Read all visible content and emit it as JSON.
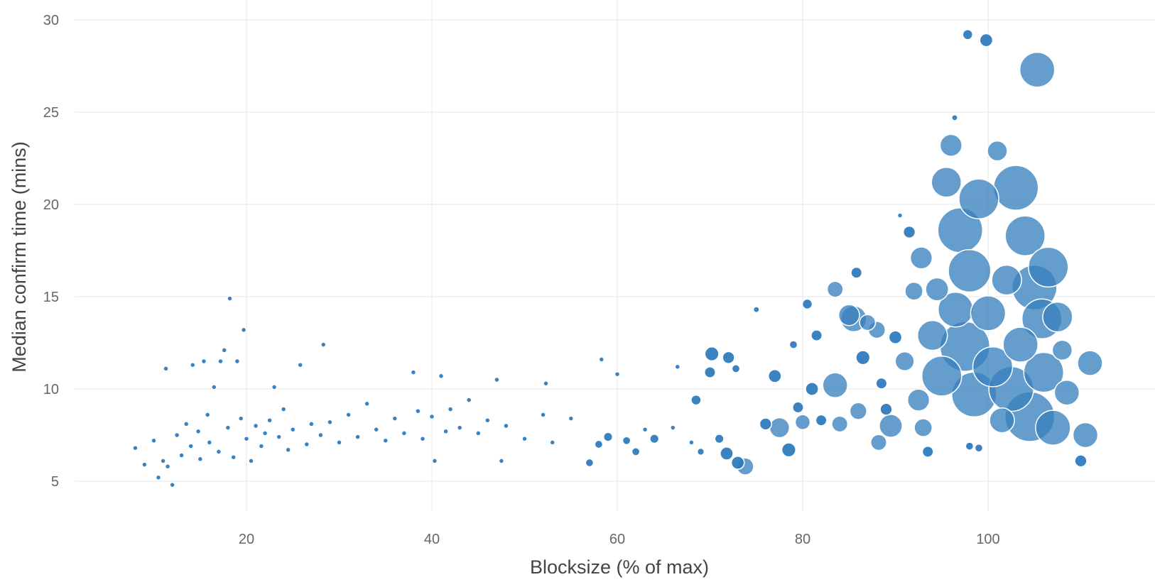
{
  "chart_data": {
    "type": "scatter",
    "subtype": "bubble",
    "xlabel": "Blocksize (% of max)",
    "ylabel": "Median confirm time (mins)",
    "xlim": [
      2,
      118
    ],
    "ylim": [
      3.5,
      30.5
    ],
    "xticks": [
      "20",
      "40",
      "60",
      "80",
      "100"
    ],
    "yticks": [
      "5",
      "10",
      "15",
      "20",
      "25",
      "30"
    ],
    "grid": true,
    "legend": "none",
    "colors": {
      "marker": "#2f7bbd",
      "marker_large": "#3a82bf",
      "grid": "#e6e6e6",
      "axis_text": "#666666"
    },
    "points": [
      {
        "x": 8,
        "y": 6.8,
        "s": 1
      },
      {
        "x": 9,
        "y": 5.9,
        "s": 1
      },
      {
        "x": 10,
        "y": 7.2,
        "s": 1
      },
      {
        "x": 10.5,
        "y": 5.2,
        "s": 1
      },
      {
        "x": 11,
        "y": 6.1,
        "s": 1
      },
      {
        "x": 11.3,
        "y": 11.1,
        "s": 1
      },
      {
        "x": 11.5,
        "y": 5.8,
        "s": 1
      },
      {
        "x": 12,
        "y": 4.8,
        "s": 1
      },
      {
        "x": 12.5,
        "y": 7.5,
        "s": 1
      },
      {
        "x": 13,
        "y": 6.4,
        "s": 1
      },
      {
        "x": 13.5,
        "y": 8.1,
        "s": 1
      },
      {
        "x": 14,
        "y": 6.9,
        "s": 1
      },
      {
        "x": 14.2,
        "y": 11.3,
        "s": 1
      },
      {
        "x": 14.8,
        "y": 7.7,
        "s": 1
      },
      {
        "x": 15,
        "y": 6.2,
        "s": 1
      },
      {
        "x": 15.4,
        "y": 11.5,
        "s": 1
      },
      {
        "x": 15.8,
        "y": 8.6,
        "s": 1
      },
      {
        "x": 16,
        "y": 7.1,
        "s": 1
      },
      {
        "x": 16.5,
        "y": 10.1,
        "s": 1
      },
      {
        "x": 17,
        "y": 6.6,
        "s": 1
      },
      {
        "x": 17.2,
        "y": 11.5,
        "s": 1
      },
      {
        "x": 17.6,
        "y": 12.1,
        "s": 1
      },
      {
        "x": 18,
        "y": 7.9,
        "s": 1
      },
      {
        "x": 18.2,
        "y": 14.9,
        "s": 1
      },
      {
        "x": 18.6,
        "y": 6.3,
        "s": 1
      },
      {
        "x": 19,
        "y": 11.5,
        "s": 1
      },
      {
        "x": 19.4,
        "y": 8.4,
        "s": 1
      },
      {
        "x": 19.7,
        "y": 13.2,
        "s": 1
      },
      {
        "x": 20,
        "y": 7.3,
        "s": 1
      },
      {
        "x": 20.5,
        "y": 6.1,
        "s": 1
      },
      {
        "x": 21,
        "y": 8.0,
        "s": 1
      },
      {
        "x": 21.6,
        "y": 6.9,
        "s": 1
      },
      {
        "x": 22,
        "y": 7.6,
        "s": 1
      },
      {
        "x": 22.5,
        "y": 8.3,
        "s": 1
      },
      {
        "x": 23,
        "y": 10.1,
        "s": 1
      },
      {
        "x": 23.5,
        "y": 7.4,
        "s": 1
      },
      {
        "x": 24,
        "y": 8.9,
        "s": 1
      },
      {
        "x": 24.5,
        "y": 6.7,
        "s": 1
      },
      {
        "x": 25,
        "y": 7.8,
        "s": 1
      },
      {
        "x": 25.8,
        "y": 11.3,
        "s": 1
      },
      {
        "x": 26.5,
        "y": 7.0,
        "s": 1
      },
      {
        "x": 27,
        "y": 8.1,
        "s": 1
      },
      {
        "x": 28,
        "y": 7.5,
        "s": 1
      },
      {
        "x": 28.3,
        "y": 12.4,
        "s": 1
      },
      {
        "x": 29,
        "y": 8.2,
        "s": 1
      },
      {
        "x": 30,
        "y": 7.1,
        "s": 1
      },
      {
        "x": 31,
        "y": 8.6,
        "s": 1
      },
      {
        "x": 32,
        "y": 7.4,
        "s": 1
      },
      {
        "x": 33,
        "y": 9.2,
        "s": 1
      },
      {
        "x": 34,
        "y": 7.8,
        "s": 1
      },
      {
        "x": 35,
        "y": 7.2,
        "s": 1
      },
      {
        "x": 36,
        "y": 8.4,
        "s": 1
      },
      {
        "x": 37,
        "y": 7.6,
        "s": 1
      },
      {
        "x": 38,
        "y": 10.9,
        "s": 1
      },
      {
        "x": 38.5,
        "y": 8.8,
        "s": 1
      },
      {
        "x": 39,
        "y": 7.3,
        "s": 1
      },
      {
        "x": 40,
        "y": 8.5,
        "s": 1
      },
      {
        "x": 40.3,
        "y": 6.1,
        "s": 1
      },
      {
        "x": 41,
        "y": 10.7,
        "s": 1
      },
      {
        "x": 41.5,
        "y": 7.7,
        "s": 1
      },
      {
        "x": 42,
        "y": 8.9,
        "s": 1
      },
      {
        "x": 43,
        "y": 7.9,
        "s": 1
      },
      {
        "x": 44,
        "y": 9.4,
        "s": 1
      },
      {
        "x": 45,
        "y": 7.6,
        "s": 1
      },
      {
        "x": 46,
        "y": 8.3,
        "s": 1
      },
      {
        "x": 47,
        "y": 10.5,
        "s": 1
      },
      {
        "x": 47.5,
        "y": 6.1,
        "s": 1
      },
      {
        "x": 48,
        "y": 8.0,
        "s": 1
      },
      {
        "x": 50,
        "y": 7.3,
        "s": 1
      },
      {
        "x": 52,
        "y": 8.6,
        "s": 1
      },
      {
        "x": 52.3,
        "y": 10.3,
        "s": 1
      },
      {
        "x": 53,
        "y": 7.1,
        "s": 1
      },
      {
        "x": 55,
        "y": 8.4,
        "s": 1
      },
      {
        "x": 57,
        "y": 6.0,
        "s": 1.6
      },
      {
        "x": 58,
        "y": 7.0,
        "s": 1.6
      },
      {
        "x": 58.3,
        "y": 11.6,
        "s": 1
      },
      {
        "x": 59,
        "y": 7.4,
        "s": 1.8
      },
      {
        "x": 60,
        "y": 10.8,
        "s": 1
      },
      {
        "x": 61,
        "y": 7.2,
        "s": 1.6
      },
      {
        "x": 62,
        "y": 6.6,
        "s": 1.6
      },
      {
        "x": 63,
        "y": 7.8,
        "s": 1
      },
      {
        "x": 64,
        "y": 7.3,
        "s": 1.8
      },
      {
        "x": 66,
        "y": 7.9,
        "s": 1
      },
      {
        "x": 66.5,
        "y": 11.2,
        "s": 1
      },
      {
        "x": 68,
        "y": 7.1,
        "s": 1
      },
      {
        "x": 68.5,
        "y": 9.4,
        "s": 2
      },
      {
        "x": 69,
        "y": 6.6,
        "s": 1.4
      },
      {
        "x": 70,
        "y": 10.9,
        "s": 2.2
      },
      {
        "x": 70.2,
        "y": 11.9,
        "s": 2.8
      },
      {
        "x": 71,
        "y": 7.3,
        "s": 1.8
      },
      {
        "x": 71.8,
        "y": 6.5,
        "s": 2.6
      },
      {
        "x": 72,
        "y": 11.7,
        "s": 2.4
      },
      {
        "x": 72.8,
        "y": 11.1,
        "s": 1.6
      },
      {
        "x": 73,
        "y": 6.0,
        "s": 2.6
      },
      {
        "x": 73.8,
        "y": 5.8,
        "s": 3.4
      },
      {
        "x": 75,
        "y": 14.3,
        "s": 1.2
      },
      {
        "x": 76,
        "y": 8.1,
        "s": 2.4
      },
      {
        "x": 77,
        "y": 10.7,
        "s": 2.6
      },
      {
        "x": 77.5,
        "y": 7.9,
        "s": 4
      },
      {
        "x": 78.5,
        "y": 6.7,
        "s": 2.8
      },
      {
        "x": 79,
        "y": 12.4,
        "s": 1.6
      },
      {
        "x": 79.5,
        "y": 9.0,
        "s": 2.2
      },
      {
        "x": 80,
        "y": 8.2,
        "s": 3
      },
      {
        "x": 80.5,
        "y": 14.6,
        "s": 2
      },
      {
        "x": 81,
        "y": 10.0,
        "s": 2.6
      },
      {
        "x": 81.5,
        "y": 12.9,
        "s": 2.2
      },
      {
        "x": 82,
        "y": 8.3,
        "s": 2.2
      },
      {
        "x": 83.5,
        "y": 10.2,
        "s": 5
      },
      {
        "x": 83.5,
        "y": 15.4,
        "s": 3.2
      },
      {
        "x": 84,
        "y": 8.1,
        "s": 3.2
      },
      {
        "x": 85,
        "y": 14.0,
        "s": 4.2
      },
      {
        "x": 85.5,
        "y": 13.8,
        "s": 5.2
      },
      {
        "x": 85.8,
        "y": 16.3,
        "s": 2.2
      },
      {
        "x": 86,
        "y": 8.8,
        "s": 3.4
      },
      {
        "x": 86.5,
        "y": 11.7,
        "s": 2.8
      },
      {
        "x": 87,
        "y": 13.6,
        "s": 3.2
      },
      {
        "x": 88,
        "y": 13.2,
        "s": 3.4
      },
      {
        "x": 88.5,
        "y": 10.3,
        "s": 2.2
      },
      {
        "x": 88.2,
        "y": 7.1,
        "s": 3.2
      },
      {
        "x": 89,
        "y": 8.9,
        "s": 2.4
      },
      {
        "x": 89.5,
        "y": 8.0,
        "s": 4.6
      },
      {
        "x": 90,
        "y": 12.8,
        "s": 2.6
      },
      {
        "x": 90.5,
        "y": 19.4,
        "s": 1
      },
      {
        "x": 91,
        "y": 11.5,
        "s": 3.8
      },
      {
        "x": 91.5,
        "y": 18.5,
        "s": 2.4
      },
      {
        "x": 92,
        "y": 15.3,
        "s": 3.6
      },
      {
        "x": 92.5,
        "y": 9.4,
        "s": 4.4
      },
      {
        "x": 92.8,
        "y": 17.1,
        "s": 4.4
      },
      {
        "x": 93,
        "y": 7.9,
        "s": 3.6
      },
      {
        "x": 93.5,
        "y": 6.6,
        "s": 2.2
      },
      {
        "x": 94,
        "y": 12.9,
        "s": 6
      },
      {
        "x": 94.5,
        "y": 15.4,
        "s": 4.6
      },
      {
        "x": 95,
        "y": 10.7,
        "s": 8
      },
      {
        "x": 95.5,
        "y": 21.2,
        "s": 6
      },
      {
        "x": 96,
        "y": 23.2,
        "s": 4.4
      },
      {
        "x": 96.4,
        "y": 24.7,
        "s": 1.2
      },
      {
        "x": 96.5,
        "y": 14.3,
        "s": 7
      },
      {
        "x": 97,
        "y": 18.6,
        "s": 9
      },
      {
        "x": 97.5,
        "y": 12.3,
        "s": 10
      },
      {
        "x": 97.8,
        "y": 29.2,
        "s": 2
      },
      {
        "x": 98,
        "y": 16.4,
        "s": 8.5
      },
      {
        "x": 98,
        "y": 6.9,
        "s": 1.6
      },
      {
        "x": 98.5,
        "y": 9.7,
        "s": 9
      },
      {
        "x": 99,
        "y": 20.3,
        "s": 8
      },
      {
        "x": 99,
        "y": 6.8,
        "s": 1.6
      },
      {
        "x": 99.8,
        "y": 28.9,
        "s": 2.6
      },
      {
        "x": 100,
        "y": 14.1,
        "s": 7
      },
      {
        "x": 100.5,
        "y": 11.2,
        "s": 8
      },
      {
        "x": 101,
        "y": 22.9,
        "s": 4
      },
      {
        "x": 101.5,
        "y": 8.3,
        "s": 5
      },
      {
        "x": 102,
        "y": 15.9,
        "s": 6
      },
      {
        "x": 102.5,
        "y": 10.0,
        "s": 9
      },
      {
        "x": 103,
        "y": 20.9,
        "s": 9
      },
      {
        "x": 103.5,
        "y": 12.4,
        "s": 7
      },
      {
        "x": 104,
        "y": 18.3,
        "s": 8
      },
      {
        "x": 104.5,
        "y": 8.5,
        "s": 10
      },
      {
        "x": 105,
        "y": 15.5,
        "s": 9
      },
      {
        "x": 105.3,
        "y": 27.3,
        "s": 7
      },
      {
        "x": 105.8,
        "y": 13.8,
        "s": 8
      },
      {
        "x": 106,
        "y": 10.9,
        "s": 8
      },
      {
        "x": 106.5,
        "y": 16.6,
        "s": 8
      },
      {
        "x": 107,
        "y": 7.9,
        "s": 7
      },
      {
        "x": 107.5,
        "y": 13.9,
        "s": 6
      },
      {
        "x": 108,
        "y": 12.1,
        "s": 4
      },
      {
        "x": 108.5,
        "y": 9.8,
        "s": 5
      },
      {
        "x": 110,
        "y": 6.1,
        "s": 2.4
      },
      {
        "x": 110.5,
        "y": 7.5,
        "s": 5
      },
      {
        "x": 111,
        "y": 11.4,
        "s": 5
      }
    ]
  }
}
